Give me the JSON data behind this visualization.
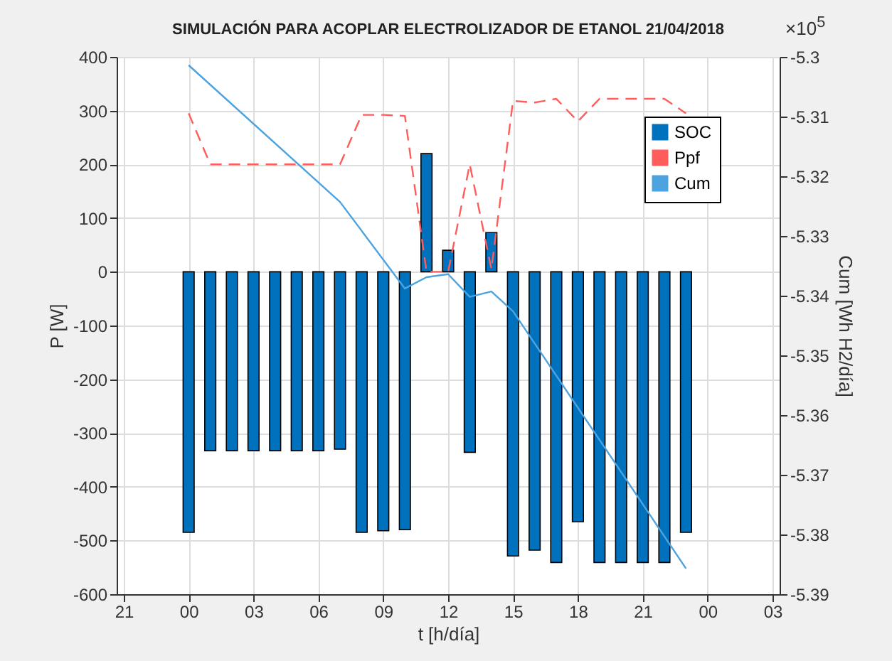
{
  "chart_data": {
    "type": "bar",
    "title": "SIMULACIÓN PARA ACOPLAR ELECTROLIZADOR DE ETANOL 21/04/2018",
    "xlabel": "t [h/día]",
    "ylabel": "P [W]",
    "y2label": "Cum [Wh H2/día]",
    "annotations": [
      "×10$^{5}$"
    ],
    "x": [
      "2018-04-21T00:00",
      "2018-04-21T01:00",
      "2018-04-21T02:00",
      "2018-04-21T03:00",
      "2018-04-21T04:00",
      "2018-04-21T05:00",
      "2018-04-21T06:00",
      "2018-04-21T07:00",
      "2018-04-21T08:00",
      "2018-04-21T09:00",
      "2018-04-21T10:00",
      "2018-04-21T11:00",
      "2018-04-21T12:00",
      "2018-04-21T13:00",
      "2018-04-21T14:00",
      "2018-04-21T15:00",
      "2018-04-21T16:00",
      "2018-04-21T17:00",
      "2018-04-21T18:00",
      "2018-04-21T19:00",
      "2018-04-21T20:00",
      "2018-04-21T21:00",
      "2018-04-21T22:00",
      "2018-04-21T23:00"
    ],
    "xlim": [
      "2018-04-20T21:00",
      "2018-04-22T03:00"
    ],
    "xticks": [
      {
        "value": "2018-04-20T21:00",
        "label": "21"
      },
      {
        "value": "2018-04-21T00:00",
        "label": "00"
      },
      {
        "value": "2018-04-21T03:00",
        "label": "03"
      },
      {
        "value": "2018-04-21T06:00",
        "label": "06"
      },
      {
        "value": "2018-04-21T09:00",
        "label": "09"
      },
      {
        "value": "2018-04-21T12:00",
        "label": "12"
      },
      {
        "value": "2018-04-21T15:00",
        "label": "15"
      },
      {
        "value": "2018-04-21T18:00",
        "label": "18"
      },
      {
        "value": "2018-04-21T21:00",
        "label": "21"
      },
      {
        "value": "2018-04-22T00:00",
        "label": "00"
      },
      {
        "value": "2018-04-22T03:00",
        "label": "03"
      }
    ],
    "ylim": [
      -600,
      400
    ],
    "yticks": [
      -600,
      -500,
      -400,
      -300,
      -200,
      -100,
      0,
      100,
      200,
      300,
      400
    ],
    "y2lim": [
      -5.39,
      -5.3
    ],
    "y2ticks": [
      -5.39,
      -5.38,
      -5.37,
      -5.36,
      -5.35,
      -5.34,
      -5.33,
      -5.32,
      -5.31,
      -5.3
    ],
    "grid": true,
    "legend": "top right",
    "series": [
      {
        "name": "SOC",
        "color": "#0072bd",
        "values": [
          -485,
          -333,
          -333,
          -333,
          -333,
          -333,
          -333,
          -330,
          -485,
          -482,
          -480,
          220,
          40,
          -336,
          73,
          -529,
          -518,
          -541,
          -465,
          -541,
          -541,
          -541,
          -541,
          -485
        ]
      },
      {
        "name": "Ppf",
        "type": "line",
        "line_style": "dashed",
        "color": "#ff5c5c",
        "values": [
          295,
          200,
          200,
          200,
          200,
          200,
          200,
          200,
          292,
          292,
          290,
          0,
          0,
          200,
          5,
          318,
          315,
          322,
          280,
          322,
          322,
          322,
          322,
          295
        ]
      },
      {
        "name": "Cum",
        "type": "line",
        "axis": "y2",
        "color": "#4da3e0",
        "x": [
          "2018-04-21T00:00",
          "2018-04-21T07:00",
          "2018-04-21T10:00",
          "2018-04-21T11:00",
          "2018-04-21T12:00",
          "2018-04-21T13:00",
          "2018-04-21T14:00",
          "2018-04-21T15:00",
          "2018-04-21T23:00"
        ],
        "values": [
          -5.3014,
          -5.3243,
          -5.3388,
          -5.3369,
          -5.3364,
          -5.3402,
          -5.3393,
          -5.3426,
          -5.3857
        ]
      }
    ]
  }
}
